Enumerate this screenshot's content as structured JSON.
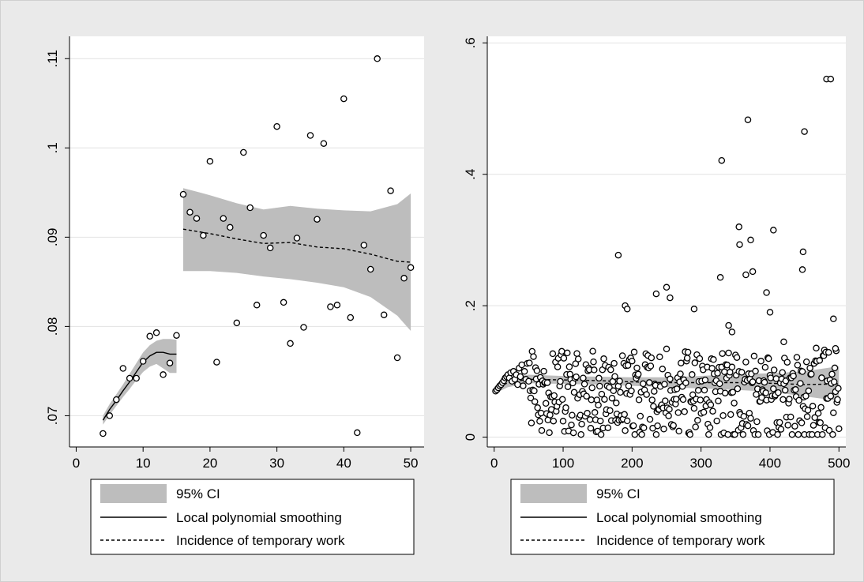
{
  "colors": {
    "outer_background": "#eaeaea",
    "plot_background": "#ffffff",
    "grid": "#e2e2e2",
    "ci_band": "#bdbdbd",
    "marker_edge": "#000000",
    "line": "#000000"
  },
  "legend": {
    "ci_label": "95% CI",
    "smooth_label": "Local polynomial smoothing",
    "incidence_label": "Incidence of temporary work"
  },
  "chart_data": [
    {
      "type": "scatter",
      "title": "",
      "xlabel": "",
      "ylabel": "",
      "xlim": [
        -1,
        52
      ],
      "ylim": [
        0.0665,
        0.1125
      ],
      "xticks": [
        0,
        10,
        20,
        30,
        40,
        50
      ],
      "xtick_labels": [
        "0",
        "10",
        "20",
        "30",
        "40",
        "50"
      ],
      "yticks": [
        0.07,
        0.08,
        0.09,
        0.1,
        0.11
      ],
      "ytick_labels": [
        ".07",
        ".08",
        ".09",
        ".1",
        ".11"
      ],
      "grid": true,
      "legend_position": "bottom",
      "points": [
        [
          4,
          0.068
        ],
        [
          5,
          0.07
        ],
        [
          6,
          0.0718
        ],
        [
          7,
          0.0753
        ],
        [
          8,
          0.0742
        ],
        [
          9,
          0.0742
        ],
        [
          10,
          0.0761
        ],
        [
          11,
          0.0789
        ],
        [
          12,
          0.0793
        ],
        [
          13,
          0.0746
        ],
        [
          14,
          0.0759
        ],
        [
          15,
          0.079
        ],
        [
          16,
          0.0948
        ],
        [
          17,
          0.0928
        ],
        [
          18,
          0.0921
        ],
        [
          19,
          0.0902
        ],
        [
          20,
          0.0985
        ],
        [
          21,
          0.076
        ],
        [
          22,
          0.0921
        ],
        [
          23,
          0.0911
        ],
        [
          24,
          0.0804
        ],
        [
          25,
          0.0995
        ],
        [
          26,
          0.0933
        ],
        [
          27,
          0.0824
        ],
        [
          28,
          0.0902
        ],
        [
          29,
          0.0888
        ],
        [
          30,
          0.1024
        ],
        [
          31,
          0.0827
        ],
        [
          32,
          0.0781
        ],
        [
          33,
          0.0899
        ],
        [
          34,
          0.0799
        ],
        [
          35,
          0.1014
        ],
        [
          36,
          0.092
        ],
        [
          37,
          0.1005
        ],
        [
          38,
          0.0822
        ],
        [
          39,
          0.0824
        ],
        [
          40,
          0.1055
        ],
        [
          41,
          0.081
        ],
        [
          42,
          0.0681
        ],
        [
          43,
          0.0891
        ],
        [
          44,
          0.0864
        ],
        [
          45,
          0.11
        ],
        [
          46,
          0.0813
        ],
        [
          47,
          0.0952
        ],
        [
          48,
          0.0765
        ],
        [
          49,
          0.0854
        ],
        [
          50,
          0.0866
        ]
      ],
      "segments": [
        {
          "x": [
            4,
            5,
            6,
            7,
            8,
            9,
            10,
            11,
            12,
            13,
            14,
            15
          ],
          "smooth": [
            0.0695,
            0.0707,
            0.0717,
            0.0728,
            0.0738,
            0.0749,
            0.076,
            0.0767,
            0.0771,
            0.0771,
            0.0769,
            0.0769
          ],
          "ci_lower": [
            0.069,
            0.0701,
            0.0711,
            0.0721,
            0.073,
            0.074,
            0.0749,
            0.0755,
            0.0758,
            0.0753,
            0.0748,
            0.0748
          ],
          "ci_upper": [
            0.07,
            0.0713,
            0.0724,
            0.0735,
            0.0747,
            0.0759,
            0.0771,
            0.0779,
            0.0784,
            0.0786,
            0.0786,
            0.0785
          ]
        },
        {
          "x": [
            16,
            20,
            24,
            28,
            32,
            36,
            40,
            44,
            48,
            50
          ],
          "smooth": [
            0.0909,
            0.0904,
            0.0898,
            0.0893,
            0.0894,
            0.0889,
            0.0887,
            0.0881,
            0.0873,
            0.0872
          ],
          "ci_lower": [
            0.0862,
            0.0862,
            0.086,
            0.0856,
            0.0853,
            0.0849,
            0.0844,
            0.0833,
            0.0812,
            0.0795
          ],
          "ci_upper": [
            0.0955,
            0.0947,
            0.0938,
            0.0931,
            0.0935,
            0.0932,
            0.093,
            0.0929,
            0.0937,
            0.0949
          ]
        }
      ]
    },
    {
      "type": "scatter",
      "title": "",
      "xlabel": "",
      "ylabel": "",
      "xlim": [
        -10,
        510
      ],
      "ylim": [
        -0.015,
        0.61
      ],
      "xticks": [
        0,
        100,
        200,
        300,
        400,
        500
      ],
      "xtick_labels": [
        "0",
        "100",
        "200",
        "300",
        "400",
        "500"
      ],
      "yticks": [
        0,
        0.2,
        0.4,
        0.6
      ],
      "ytick_labels": [
        "0",
        ".2",
        ".4",
        ".6"
      ],
      "grid": true,
      "legend_position": "bottom",
      "num_points": 500,
      "points_early": [
        [
          2,
          0.07
        ],
        [
          4,
          0.072
        ],
        [
          6,
          0.075
        ],
        [
          8,
          0.078
        ],
        [
          10,
          0.08
        ],
        [
          12,
          0.083
        ],
        [
          14,
          0.086
        ],
        [
          16,
          0.09
        ],
        [
          18,
          0.092
        ],
        [
          20,
          0.095
        ],
        [
          22,
          0.09
        ],
        [
          24,
          0.098
        ],
        [
          26,
          0.085
        ],
        [
          28,
          0.1
        ],
        [
          30,
          0.088
        ],
        [
          32,
          0.095
        ],
        [
          34,
          0.08
        ],
        [
          36,
          0.105
        ],
        [
          38,
          0.092
        ],
        [
          40,
          0.11
        ],
        [
          42,
          0.078
        ],
        [
          44,
          0.1
        ],
        [
          46,
          0.088
        ],
        [
          48,
          0.112
        ],
        [
          50,
          0.085
        ]
      ],
      "points_outliers": [
        [
          180,
          0.277
        ],
        [
          190,
          0.2
        ],
        [
          193,
          0.195
        ],
        [
          235,
          0.218
        ],
        [
          250,
          0.228
        ],
        [
          255,
          0.212
        ],
        [
          290,
          0.195
        ],
        [
          328,
          0.243
        ],
        [
          330,
          0.421
        ],
        [
          340,
          0.17
        ],
        [
          345,
          0.16
        ],
        [
          355,
          0.32
        ],
        [
          356,
          0.293
        ],
        [
          365,
          0.247
        ],
        [
          368,
          0.483
        ],
        [
          372,
          0.3
        ],
        [
          375,
          0.252
        ],
        [
          395,
          0.22
        ],
        [
          400,
          0.19
        ],
        [
          405,
          0.315
        ],
        [
          420,
          0.145
        ],
        [
          447,
          0.255
        ],
        [
          448,
          0.282
        ],
        [
          450,
          0.465
        ],
        [
          482,
          0.545
        ],
        [
          488,
          0.545
        ],
        [
          492,
          0.18
        ],
        [
          495,
          0.135
        ]
      ],
      "scatter_model": {
        "start_x": 51,
        "end_x": 500,
        "center": 0.063,
        "spread_min": 0.058,
        "spread_growth": 0.012,
        "mean_range": [
          0.0,
          0.17
        ]
      },
      "segments": [
        {
          "x": [
            0,
            20,
            50,
            100,
            150,
            200,
            250,
            300,
            350,
            400,
            450,
            500
          ],
          "smooth": [
            0.072,
            0.083,
            0.088,
            0.087,
            0.086,
            0.084,
            0.083,
            0.083,
            0.083,
            0.082,
            0.08,
            0.081
          ],
          "ci_lower": [
            0.066,
            0.076,
            0.082,
            0.081,
            0.08,
            0.078,
            0.076,
            0.074,
            0.072,
            0.069,
            0.062,
            0.055
          ],
          "ci_upper": [
            0.077,
            0.09,
            0.095,
            0.093,
            0.092,
            0.091,
            0.091,
            0.093,
            0.096,
            0.097,
            0.1,
            0.108
          ]
        }
      ]
    }
  ]
}
